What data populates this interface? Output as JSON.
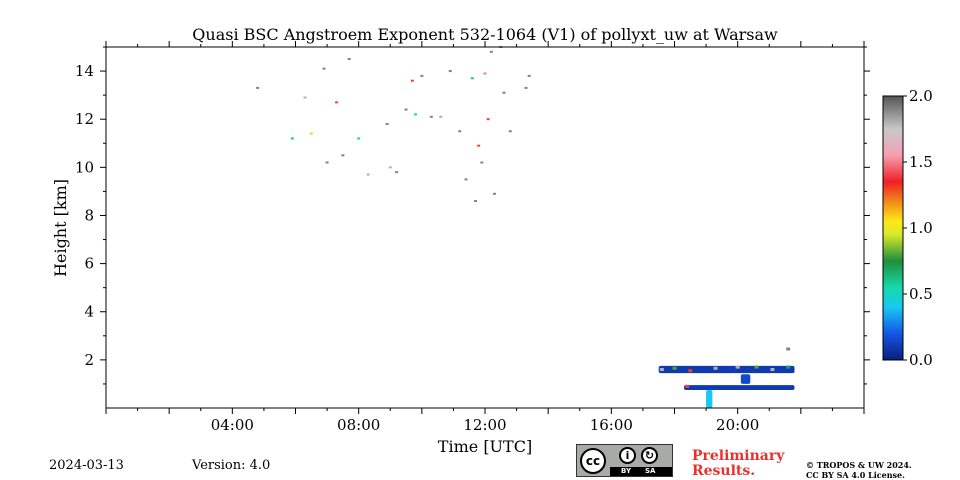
{
  "chart_data": {
    "type": "heatmap",
    "title": "Quasi BSC Angstroem Exponent 532-1064 (V1) of pollyxt_uw at Warsaw",
    "xlabel": "Time [UTC]",
    "ylabel": "Height [km]",
    "xlim_hours": [
      0,
      24
    ],
    "ylim_km": [
      0,
      15
    ],
    "x_ticks": [
      {
        "value": 4,
        "label": "04:00"
      },
      {
        "value": 8,
        "label": "08:00"
      },
      {
        "value": 12,
        "label": "12:00"
      },
      {
        "value": 16,
        "label": "16:00"
      },
      {
        "value": 20,
        "label": "20:00"
      }
    ],
    "y_ticks": [
      {
        "value": 2,
        "label": "2"
      },
      {
        "value": 4,
        "label": "4"
      },
      {
        "value": 6,
        "label": "6"
      },
      {
        "value": 8,
        "label": "8"
      },
      {
        "value": 10,
        "label": "10"
      },
      {
        "value": 12,
        "label": "12"
      },
      {
        "value": 14,
        "label": "14"
      }
    ],
    "colorbar": {
      "range": [
        0.0,
        2.0
      ],
      "ticks": [
        {
          "value": 0.0,
          "label": "0.0"
        },
        {
          "value": 0.5,
          "label": "0.5"
        },
        {
          "value": 1.0,
          "label": "1.0"
        },
        {
          "value": 1.5,
          "label": "1.5"
        },
        {
          "value": 2.0,
          "label": "2.0"
        }
      ],
      "stops": [
        {
          "v": 0.0,
          "color": "#0a1f7a"
        },
        {
          "v": 0.2,
          "color": "#1455e6"
        },
        {
          "v": 0.4,
          "color": "#19c8f0"
        },
        {
          "v": 0.55,
          "color": "#18d8a8"
        },
        {
          "v": 0.75,
          "color": "#1e8f3c"
        },
        {
          "v": 0.95,
          "color": "#d8e82a"
        },
        {
          "v": 1.05,
          "color": "#ffe81a"
        },
        {
          "v": 1.2,
          "color": "#f08a18"
        },
        {
          "v": 1.35,
          "color": "#f01e28"
        },
        {
          "v": 1.55,
          "color": "#f4a0b0"
        },
        {
          "v": 1.75,
          "color": "#c8c8c8"
        },
        {
          "v": 2.0,
          "color": "#555555"
        }
      ]
    },
    "sparse_points": [
      {
        "t": 4.8,
        "h": 13.3,
        "v": 1.9
      },
      {
        "t": 5.9,
        "h": 11.2,
        "v": 0.6
      },
      {
        "t": 6.3,
        "h": 12.9,
        "v": 1.8
      },
      {
        "t": 6.5,
        "h": 11.4,
        "v": 1.1
      },
      {
        "t": 6.9,
        "h": 14.1,
        "v": 1.9
      },
      {
        "t": 7.0,
        "h": 10.2,
        "v": 1.9
      },
      {
        "t": 7.3,
        "h": 12.7,
        "v": 1.4
      },
      {
        "t": 7.5,
        "h": 10.5,
        "v": 1.9
      },
      {
        "t": 7.7,
        "h": 14.5,
        "v": 1.9
      },
      {
        "t": 8.0,
        "h": 11.2,
        "v": 0.5
      },
      {
        "t": 8.3,
        "h": 9.7,
        "v": 1.8
      },
      {
        "t": 8.9,
        "h": 11.8,
        "v": 1.9
      },
      {
        "t": 9.0,
        "h": 10.0,
        "v": 1.8
      },
      {
        "t": 9.2,
        "h": 9.8,
        "v": 1.9
      },
      {
        "t": 9.5,
        "h": 12.4,
        "v": 1.9
      },
      {
        "t": 9.7,
        "h": 13.6,
        "v": 1.3
      },
      {
        "t": 10.0,
        "h": 13.8,
        "v": 1.9
      },
      {
        "t": 10.3,
        "h": 12.1,
        "v": 1.9
      },
      {
        "t": 10.6,
        "h": 12.1,
        "v": 1.8
      },
      {
        "t": 10.9,
        "h": 14.0,
        "v": 1.9
      },
      {
        "t": 11.2,
        "h": 11.5,
        "v": 1.9
      },
      {
        "t": 11.4,
        "h": 9.5,
        "v": 1.9
      },
      {
        "t": 11.6,
        "h": 13.7,
        "v": 0.6
      },
      {
        "t": 11.8,
        "h": 10.9,
        "v": 1.3
      },
      {
        "t": 12.0,
        "h": 13.9,
        "v": 1.5
      },
      {
        "t": 12.1,
        "h": 12.0,
        "v": 1.4
      },
      {
        "t": 12.2,
        "h": 14.8,
        "v": 1.9
      },
      {
        "t": 12.3,
        "h": 8.9,
        "v": 1.9
      },
      {
        "t": 12.6,
        "h": 13.1,
        "v": 1.9
      },
      {
        "t": 12.8,
        "h": 11.5,
        "v": 1.9
      },
      {
        "t": 13.3,
        "h": 13.3,
        "v": 1.9
      },
      {
        "t": 13.4,
        "h": 13.8,
        "v": 1.9
      },
      {
        "t": 11.7,
        "h": 8.6,
        "v": 1.9
      },
      {
        "t": 12.5,
        "h": 15.0,
        "v": 1.9
      },
      {
        "t": 9.8,
        "h": 12.2,
        "v": 0.5
      },
      {
        "t": 11.9,
        "h": 10.2,
        "v": 1.9
      }
    ],
    "bands": [
      {
        "t0": 17.5,
        "t1": 21.8,
        "h0": 1.45,
        "h1": 1.75,
        "v": 0.1
      },
      {
        "t0": 18.3,
        "t1": 19.8,
        "h0": 0.75,
        "h1": 0.95,
        "v": 0.1
      },
      {
        "t0": 19.7,
        "t1": 21.8,
        "h0": 0.75,
        "h1": 0.95,
        "v": 0.1
      },
      {
        "t0": 20.1,
        "t1": 20.4,
        "h0": 1.0,
        "h1": 1.4,
        "v": 0.15
      },
      {
        "t0": 19.0,
        "t1": 19.2,
        "h0": 0.0,
        "h1": 0.75,
        "v": 0.4
      }
    ],
    "colored_specks": [
      {
        "t": 17.6,
        "h": 1.6,
        "v": 1.8
      },
      {
        "t": 18.0,
        "h": 1.65,
        "v": 0.8
      },
      {
        "t": 18.5,
        "h": 1.55,
        "v": 1.3
      },
      {
        "t": 19.3,
        "h": 1.65,
        "v": 1.8
      },
      {
        "t": 20.0,
        "h": 1.7,
        "v": 1.8
      },
      {
        "t": 20.6,
        "h": 1.7,
        "v": 0.8
      },
      {
        "t": 21.1,
        "h": 1.6,
        "v": 1.8
      },
      {
        "t": 21.6,
        "h": 1.7,
        "v": 0.7
      },
      {
        "t": 18.4,
        "h": 0.9,
        "v": 1.4
      },
      {
        "t": 21.6,
        "h": 2.45,
        "v": 1.9
      }
    ]
  },
  "footer": {
    "date": "2024-03-13",
    "version": "Version: 4.0",
    "license_badge": {
      "cc": "cc",
      "by": "BY",
      "sa": "SA"
    },
    "preliminary": [
      "Preliminary",
      "Results."
    ],
    "copyright": [
      "© TROPOS & UW 2024.",
      "CC BY SA 4.0 License."
    ]
  }
}
